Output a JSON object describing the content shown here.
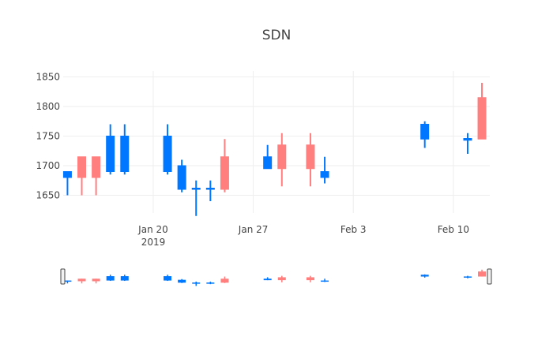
{
  "chart_data": {
    "type": "candlestick",
    "title": "SDN",
    "xlabel": "",
    "ylabel": "",
    "ylim": [
      1620,
      1860
    ],
    "yticks": [
      1650,
      1700,
      1750,
      1800,
      1850
    ],
    "xrange": [
      "2019-01-14",
      "2019-02-13"
    ],
    "xticks": [
      {
        "date": "2019-01-20",
        "label": "Jan 20",
        "sublabel": "2019"
      },
      {
        "date": "2019-01-27",
        "label": "Jan 27",
        "sublabel": ""
      },
      {
        "date": "2019-02-03",
        "label": "Feb 3",
        "sublabel": ""
      },
      {
        "date": "2019-02-10",
        "label": "Feb 10",
        "sublabel": ""
      }
    ],
    "series": [
      {
        "date": "2019-01-14",
        "open": 1680,
        "high": 1690,
        "low": 1650,
        "close": 1690
      },
      {
        "date": "2019-01-15",
        "open": 1715,
        "high": 1715,
        "low": 1650,
        "close": 1680
      },
      {
        "date": "2019-01-16",
        "open": 1715,
        "high": 1715,
        "low": 1650,
        "close": 1680
      },
      {
        "date": "2019-01-17",
        "open": 1690,
        "high": 1770,
        "low": 1685,
        "close": 1750
      },
      {
        "date": "2019-01-18",
        "open": 1690,
        "high": 1770,
        "low": 1685,
        "close": 1750
      },
      {
        "date": "2019-01-21",
        "open": 1690,
        "high": 1770,
        "low": 1685,
        "close": 1750
      },
      {
        "date": "2019-01-22",
        "open": 1660,
        "high": 1710,
        "low": 1655,
        "close": 1700
      },
      {
        "date": "2019-01-23",
        "open": 1660,
        "high": 1675,
        "low": 1615,
        "close": 1662
      },
      {
        "date": "2019-01-24",
        "open": 1660,
        "high": 1675,
        "low": 1640,
        "close": 1662
      },
      {
        "date": "2019-01-25",
        "open": 1715,
        "high": 1745,
        "low": 1655,
        "close": 1660
      },
      {
        "date": "2019-01-28",
        "open": 1695,
        "high": 1735,
        "low": 1695,
        "close": 1715
      },
      {
        "date": "2019-01-29",
        "open": 1735,
        "high": 1755,
        "low": 1665,
        "close": 1695
      },
      {
        "date": "2019-01-31",
        "open": 1735,
        "high": 1755,
        "low": 1665,
        "close": 1695
      },
      {
        "date": "2019-02-01",
        "open": 1680,
        "high": 1715,
        "low": 1670,
        "close": 1690
      },
      {
        "date": "2019-02-08",
        "open": 1745,
        "high": 1775,
        "low": 1730,
        "close": 1770
      },
      {
        "date": "2019-02-11",
        "open": 1743,
        "high": 1755,
        "low": 1720,
        "close": 1746
      },
      {
        "date": "2019-02-12",
        "open": 1815,
        "high": 1840,
        "low": 1745,
        "close": 1745
      }
    ],
    "increasing_color": "#0077ff",
    "decreasing_color": "#ff7f7f",
    "grid": true,
    "rangeslider": true
  }
}
